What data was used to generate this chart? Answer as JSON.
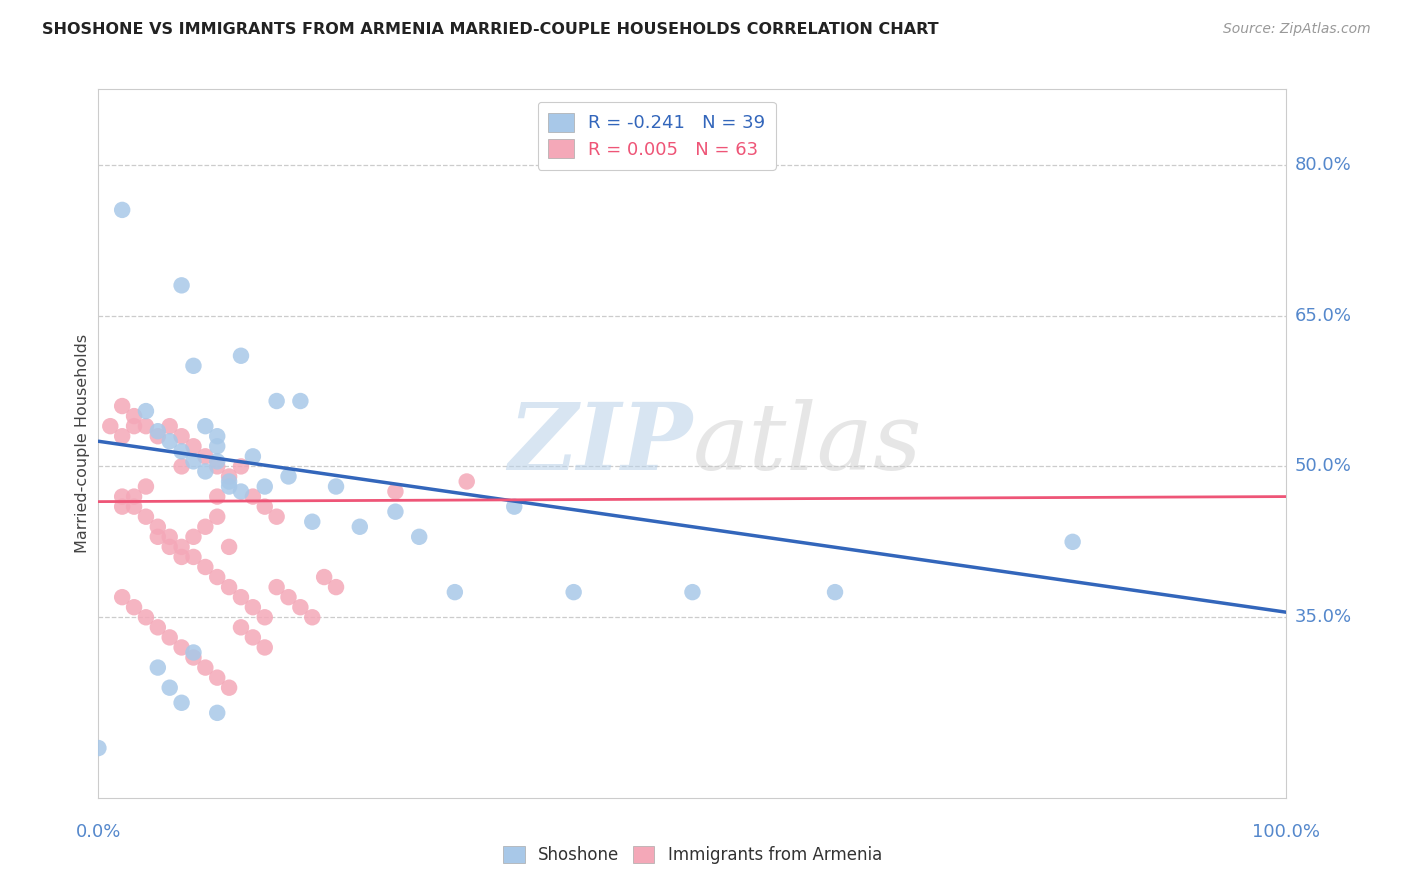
{
  "title": "SHOSHONE VS IMMIGRANTS FROM ARMENIA MARRIED-COUPLE HOUSEHOLDS CORRELATION CHART",
  "source": "Source: ZipAtlas.com",
  "ylabel": "Married-couple Households",
  "xlim": [
    0.0,
    1.0
  ],
  "ylim": [
    0.17,
    0.875
  ],
  "ytick_values": [
    0.35,
    0.5,
    0.65,
    0.8
  ],
  "ytick_labels": [
    "35.0%",
    "50.0%",
    "65.0%",
    "80.0%"
  ],
  "shoshone_color": "#a8c8e8",
  "armenia_color": "#f4a8b8",
  "shoshone_line_color": "#3366bb",
  "armenia_line_color": "#ee5577",
  "shoshone_R": -0.241,
  "shoshone_N": 39,
  "armenia_R": 0.005,
  "armenia_N": 63,
  "watermark": "ZIPatlas",
  "shoshone_x": [
    0.02,
    0.04,
    0.05,
    0.06,
    0.07,
    0.08,
    0.09,
    0.1,
    0.1,
    0.11,
    0.12,
    0.13,
    0.14,
    0.15,
    0.07,
    0.08,
    0.09,
    0.1,
    0.11,
    0.12,
    0.16,
    0.17,
    0.18,
    0.2,
    0.22,
    0.25,
    0.27,
    0.3,
    0.35,
    0.4,
    0.5,
    0.62,
    0.82,
    0.05,
    0.06,
    0.07,
    0.08,
    0.0,
    0.1
  ],
  "shoshone_y": [
    0.755,
    0.555,
    0.535,
    0.525,
    0.515,
    0.505,
    0.495,
    0.505,
    0.52,
    0.485,
    0.475,
    0.51,
    0.48,
    0.565,
    0.68,
    0.6,
    0.54,
    0.53,
    0.48,
    0.61,
    0.49,
    0.565,
    0.445,
    0.48,
    0.44,
    0.455,
    0.43,
    0.375,
    0.46,
    0.375,
    0.375,
    0.375,
    0.425,
    0.3,
    0.28,
    0.265,
    0.315,
    0.22,
    0.255
  ],
  "armenia_x": [
    0.01,
    0.02,
    0.02,
    0.02,
    0.03,
    0.03,
    0.03,
    0.04,
    0.04,
    0.05,
    0.05,
    0.06,
    0.06,
    0.07,
    0.07,
    0.07,
    0.08,
    0.08,
    0.09,
    0.09,
    0.1,
    0.1,
    0.1,
    0.11,
    0.11,
    0.12,
    0.12,
    0.13,
    0.13,
    0.14,
    0.14,
    0.15,
    0.15,
    0.16,
    0.17,
    0.18,
    0.19,
    0.2,
    0.02,
    0.03,
    0.04,
    0.05,
    0.06,
    0.07,
    0.08,
    0.09,
    0.1,
    0.11,
    0.12,
    0.13,
    0.14,
    0.02,
    0.03,
    0.04,
    0.05,
    0.06,
    0.07,
    0.08,
    0.09,
    0.1,
    0.11,
    0.25,
    0.31
  ],
  "armenia_y": [
    0.54,
    0.56,
    0.53,
    0.46,
    0.55,
    0.54,
    0.47,
    0.54,
    0.48,
    0.53,
    0.43,
    0.54,
    0.42,
    0.53,
    0.5,
    0.41,
    0.52,
    0.43,
    0.51,
    0.44,
    0.5,
    0.47,
    0.45,
    0.49,
    0.42,
    0.5,
    0.34,
    0.47,
    0.33,
    0.46,
    0.32,
    0.45,
    0.38,
    0.37,
    0.36,
    0.35,
    0.39,
    0.38,
    0.47,
    0.46,
    0.45,
    0.44,
    0.43,
    0.42,
    0.41,
    0.4,
    0.39,
    0.38,
    0.37,
    0.36,
    0.35,
    0.37,
    0.36,
    0.35,
    0.34,
    0.33,
    0.32,
    0.31,
    0.3,
    0.29,
    0.28,
    0.475,
    0.485
  ],
  "shoshone_line_x": [
    0.0,
    1.0
  ],
  "shoshone_line_y": [
    0.525,
    0.355
  ],
  "armenia_line_x": [
    0.0,
    1.0
  ],
  "armenia_line_y": [
    0.465,
    0.47
  ]
}
